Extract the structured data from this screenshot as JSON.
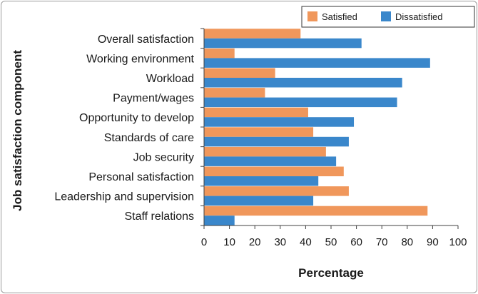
{
  "chart_data": {
    "type": "bar",
    "orientation": "horizontal",
    "title": "",
    "xlabel": "Percentage",
    "ylabel": "Job satisfaction component",
    "xlim": [
      0,
      100
    ],
    "xticks": [
      0,
      10,
      20,
      30,
      40,
      50,
      60,
      70,
      80,
      90,
      100
    ],
    "grid": false,
    "legend_position": "top-right",
    "categories": [
      "Overall satisfaction",
      "Working environment",
      "Workload",
      "Payment/wages",
      "Opportunity to develop",
      "Standards of care",
      "Job security",
      "Personal satisfaction",
      "Leadership and supervision",
      "Staff relations"
    ],
    "series": [
      {
        "name": "Satisfied",
        "color": "#F0975B",
        "values": [
          38,
          12,
          28,
          24,
          41,
          43,
          48,
          55,
          57,
          88
        ]
      },
      {
        "name": "Dissatisfied",
        "color": "#3A87CB",
        "values": [
          62,
          89,
          78,
          76,
          59,
          57,
          52,
          45,
          43,
          12
        ]
      }
    ]
  }
}
